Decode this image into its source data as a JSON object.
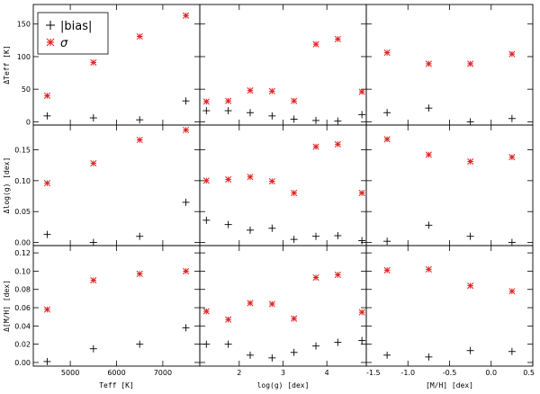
{
  "legend": {
    "items": [
      {
        "label": "|bias|",
        "marker": "plus",
        "color": "#000000"
      },
      {
        "label": "σ",
        "marker": "asterisk",
        "color": "#e02020"
      }
    ]
  },
  "colors": {
    "sigma": "#e02020",
    "bias": "#000000"
  },
  "chart_data": [
    {
      "type": "scatter",
      "row": 0,
      "col": 0,
      "ylabel": "ΔTeff [K]",
      "xlabel": "",
      "xlim": [
        4200,
        7800
      ],
      "ylim": [
        -5,
        180
      ],
      "xticks": [
        5000,
        6000,
        7000
      ],
      "xticklabels": [],
      "yticks": [
        0,
        50,
        100,
        150
      ],
      "yticklabels": [
        "0",
        "50",
        "100",
        "150"
      ],
      "series": [
        {
          "name": "|bias|",
          "values": [
            [
              4500,
              9
            ],
            [
              5500,
              6
            ],
            [
              6500,
              3
            ],
            [
              7500,
              32
            ]
          ]
        },
        {
          "name": "σ",
          "values": [
            [
              4500,
              40
            ],
            [
              5500,
              91
            ],
            [
              6500,
              131
            ],
            [
              7500,
              163
            ]
          ]
        }
      ]
    },
    {
      "type": "scatter",
      "row": 0,
      "col": 1,
      "ylabel": "",
      "xlabel": "",
      "xlim": [
        1.1,
        4.9
      ],
      "ylim": [
        -5,
        180
      ],
      "xticks": [
        2,
        3,
        4
      ],
      "xticklabels": [],
      "yticks": [
        0,
        50,
        100,
        150
      ],
      "yticklabels": [],
      "series": [
        {
          "name": "|bias|",
          "values": [
            [
              1.25,
              17
            ],
            [
              1.75,
              17
            ],
            [
              2.25,
              14
            ],
            [
              2.75,
              9
            ],
            [
              3.25,
              4
            ],
            [
              3.75,
              2
            ],
            [
              4.25,
              1
            ],
            [
              4.8,
              11
            ]
          ]
        },
        {
          "name": "σ",
          "values": [
            [
              1.25,
              31
            ],
            [
              1.75,
              32
            ],
            [
              2.25,
              48
            ],
            [
              2.75,
              47
            ],
            [
              3.25,
              32
            ],
            [
              3.75,
              119
            ],
            [
              4.25,
              127
            ],
            [
              4.8,
              46
            ]
          ]
        }
      ]
    },
    {
      "type": "scatter",
      "row": 0,
      "col": 2,
      "ylabel": "",
      "xlabel": "",
      "xlim": [
        -1.5,
        0.5
      ],
      "ylim": [
        -5,
        180
      ],
      "xticks": [
        -1.0,
        -0.5,
        0.0
      ],
      "xticklabels": [],
      "yticks": [
        0,
        50,
        100,
        150
      ],
      "yticklabels": [],
      "series": [
        {
          "name": "|bias|",
          "values": [
            [
              -1.25,
              14
            ],
            [
              -0.75,
              21
            ],
            [
              -0.25,
              0
            ],
            [
              0.25,
              5
            ]
          ]
        },
        {
          "name": "σ",
          "values": [
            [
              -1.25,
              106
            ],
            [
              -0.75,
              89
            ],
            [
              -0.25,
              89
            ],
            [
              0.25,
              104
            ]
          ]
        }
      ]
    },
    {
      "type": "scatter",
      "row": 1,
      "col": 0,
      "ylabel": "Δlog(g) [dex]",
      "xlabel": "",
      "xlim": [
        4200,
        7800
      ],
      "ylim": [
        -0.005,
        0.19
      ],
      "xticks": [
        5000,
        6000,
        7000
      ],
      "xticklabels": [],
      "yticks": [
        0.0,
        0.05,
        0.1,
        0.15
      ],
      "yticklabels": [
        "0.00",
        "0.05",
        "0.10",
        "0.15"
      ],
      "series": [
        {
          "name": "|bias|",
          "values": [
            [
              4500,
              0.013
            ],
            [
              5500,
              0.0
            ],
            [
              6500,
              0.01
            ],
            [
              7500,
              0.065
            ]
          ]
        },
        {
          "name": "σ",
          "values": [
            [
              4500,
              0.096
            ],
            [
              5500,
              0.128
            ],
            [
              6500,
              0.166
            ],
            [
              7500,
              0.182
            ]
          ]
        }
      ]
    },
    {
      "type": "scatter",
      "row": 1,
      "col": 1,
      "ylabel": "",
      "xlabel": "",
      "xlim": [
        1.1,
        4.9
      ],
      "ylim": [
        -0.005,
        0.19
      ],
      "xticks": [
        2,
        3,
        4
      ],
      "xticklabels": [],
      "yticks": [
        0.0,
        0.05,
        0.1,
        0.15
      ],
      "yticklabels": [],
      "series": [
        {
          "name": "|bias|",
          "values": [
            [
              1.25,
              0.036
            ],
            [
              1.75,
              0.029
            ],
            [
              2.25,
              0.02
            ],
            [
              2.75,
              0.023
            ],
            [
              3.25,
              0.005
            ],
            [
              3.75,
              0.01
            ],
            [
              4.25,
              0.011
            ],
            [
              4.8,
              0.003
            ]
          ]
        },
        {
          "name": "σ",
          "values": [
            [
              1.25,
              0.1
            ],
            [
              1.75,
              0.102
            ],
            [
              2.25,
              0.106
            ],
            [
              2.75,
              0.099
            ],
            [
              3.25,
              0.08
            ],
            [
              3.75,
              0.155
            ],
            [
              4.25,
              0.159
            ],
            [
              4.8,
              0.08
            ]
          ]
        }
      ]
    },
    {
      "type": "scatter",
      "row": 1,
      "col": 2,
      "ylabel": "",
      "xlabel": "",
      "xlim": [
        -1.5,
        0.5
      ],
      "ylim": [
        -0.005,
        0.19
      ],
      "xticks": [
        -1.0,
        -0.5,
        0.0
      ],
      "xticklabels": [],
      "yticks": [
        0.0,
        0.05,
        0.1,
        0.15
      ],
      "yticklabels": [],
      "series": [
        {
          "name": "|bias|",
          "values": [
            [
              -1.25,
              0.002
            ],
            [
              -0.75,
              0.028
            ],
            [
              -0.25,
              0.01
            ],
            [
              0.25,
              0.0
            ]
          ]
        },
        {
          "name": "σ",
          "values": [
            [
              -1.25,
              0.167
            ],
            [
              -0.75,
              0.142
            ],
            [
              -0.25,
              0.131
            ],
            [
              0.25,
              0.138
            ]
          ]
        }
      ]
    },
    {
      "type": "scatter",
      "row": 2,
      "col": 0,
      "ylabel": "Δ[M/H] [dex]",
      "xlabel": "Teff [K]",
      "xlim": [
        4200,
        7800
      ],
      "ylim": [
        -0.004,
        0.128
      ],
      "xticks": [
        5000,
        6000,
        7000
      ],
      "xticklabels": [
        "5000",
        "6000",
        "7000"
      ],
      "yticks": [
        0.0,
        0.02,
        0.04,
        0.06,
        0.08,
        0.1,
        0.12
      ],
      "yticklabels": [
        "0.00",
        "0.02",
        "0.04",
        "0.06",
        "0.08",
        "0.10",
        "0.12"
      ],
      "series": [
        {
          "name": "|bias|",
          "values": [
            [
              4500,
              0.001
            ],
            [
              5500,
              0.015
            ],
            [
              6500,
              0.02
            ],
            [
              7500,
              0.038
            ]
          ]
        },
        {
          "name": "σ",
          "values": [
            [
              4500,
              0.058
            ],
            [
              5500,
              0.09
            ],
            [
              6500,
              0.097
            ],
            [
              7500,
              0.1
            ]
          ]
        }
      ]
    },
    {
      "type": "scatter",
      "row": 2,
      "col": 1,
      "ylabel": "",
      "xlabel": "log(g) [dex]",
      "xlim": [
        1.1,
        4.9
      ],
      "ylim": [
        -0.004,
        0.128
      ],
      "xticks": [
        2,
        3,
        4
      ],
      "xticklabels": [
        "2",
        "3",
        "4"
      ],
      "yticks": [
        0.0,
        0.02,
        0.04,
        0.06,
        0.08,
        0.1,
        0.12
      ],
      "yticklabels": [],
      "series": [
        {
          "name": "|bias|",
          "values": [
            [
              1.25,
              0.02
            ],
            [
              1.75,
              0.02
            ],
            [
              2.25,
              0.008
            ],
            [
              2.75,
              0.005
            ],
            [
              3.25,
              0.011
            ],
            [
              3.75,
              0.018
            ],
            [
              4.25,
              0.022
            ],
            [
              4.8,
              0.024
            ]
          ]
        },
        {
          "name": "σ",
          "values": [
            [
              1.25,
              0.056
            ],
            [
              1.75,
              0.047
            ],
            [
              2.25,
              0.065
            ],
            [
              2.75,
              0.064
            ],
            [
              3.25,
              0.048
            ],
            [
              3.75,
              0.093
            ],
            [
              4.25,
              0.096
            ],
            [
              4.8,
              0.055
            ]
          ]
        }
      ]
    },
    {
      "type": "scatter",
      "row": 2,
      "col": 2,
      "ylabel": "",
      "xlabel": "[M/H] [dex]",
      "xlim": [
        -1.5,
        0.5
      ],
      "ylim": [
        -0.004,
        0.128
      ],
      "xticks": [
        -1.5,
        -1.0,
        -0.5,
        0.0,
        0.5
      ],
      "xticklabels": [
        "-1.5",
        "-1.0",
        "-0.5",
        "0.0",
        "0.5"
      ],
      "yticks": [
        0.0,
        0.02,
        0.04,
        0.06,
        0.08,
        0.1,
        0.12
      ],
      "yticklabels": [],
      "series": [
        {
          "name": "|bias|",
          "values": [
            [
              -1.25,
              0.008
            ],
            [
              -0.75,
              0.006
            ],
            [
              -0.25,
              0.013
            ],
            [
              0.25,
              0.012
            ]
          ]
        },
        {
          "name": "σ",
          "values": [
            [
              -1.25,
              0.101
            ],
            [
              -0.75,
              0.102
            ],
            [
              -0.25,
              0.084
            ],
            [
              0.25,
              0.078
            ]
          ]
        }
      ]
    }
  ]
}
